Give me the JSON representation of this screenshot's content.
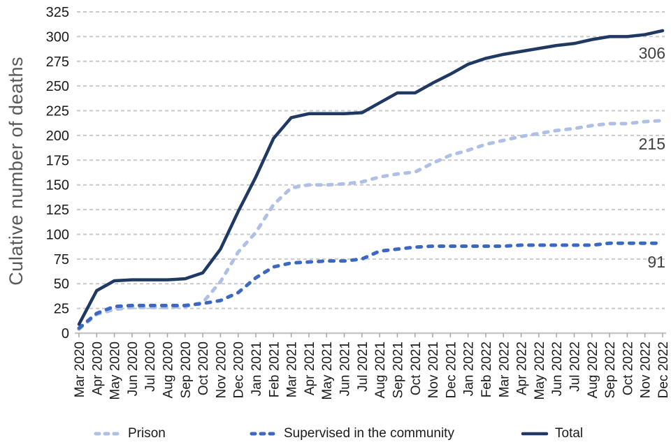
{
  "chart_data": {
    "type": "line",
    "title": "",
    "ylabel": "Culative number of deaths",
    "xlabel": "",
    "ylim": [
      0,
      325
    ],
    "y_ticks": [
      0,
      25,
      50,
      75,
      100,
      125,
      150,
      175,
      200,
      225,
      250,
      275,
      300,
      325
    ],
    "grid": "horizontal-dashed",
    "legend_position": "bottom",
    "categories": [
      "Mar 2020",
      "Apr 2020",
      "May 2020",
      "Jun 2020",
      "Jul 2020",
      "Aug 2020",
      "Sep 2020",
      "Oct 2020",
      "Nov 2020",
      "Dec 2020",
      "Jan 2021",
      "Feb 2021",
      "Mar 2021",
      "Apr 2021",
      "May 2021",
      "Jun 2021",
      "Jul 2021",
      "Aug 2021",
      "Sep 2021",
      "Oct 2021",
      "Nov 2021",
      "Dec 2021",
      "Jan 2022",
      "Feb 2022",
      "Mar 2022",
      "Apr 2022",
      "May 2022",
      "Jun 2022",
      "Jul 2022",
      "Aug 2022",
      "Sep 2022",
      "Oct 2022",
      "Nov 2022",
      "Dec 2022"
    ],
    "series": [
      {
        "name": "Prison",
        "style": "dashed",
        "color": "#AEC0E6",
        "values": [
          4,
          19,
          24,
          26,
          26,
          26,
          27,
          31,
          52,
          82,
          102,
          130,
          147,
          150,
          150,
          151,
          153,
          158,
          161,
          163,
          172,
          180,
          185,
          191,
          195,
          199,
          202,
          205,
          207,
          210,
          212,
          212,
          214,
          215
        ]
      },
      {
        "name": "Supervised in the community",
        "style": "dashed",
        "color": "#3C68C4",
        "values": [
          5,
          20,
          27,
          28,
          28,
          28,
          28,
          30,
          33,
          41,
          56,
          67,
          71,
          72,
          73,
          73,
          75,
          83,
          85,
          87,
          88,
          88,
          88,
          88,
          88,
          89,
          89,
          89,
          89,
          89,
          91,
          91,
          91,
          91
        ]
      },
      {
        "name": "Total",
        "style": "solid",
        "color": "#1F3864",
        "values": [
          9,
          43,
          53,
          54,
          54,
          54,
          55,
          61,
          85,
          123,
          158,
          197,
          218,
          222,
          222,
          222,
          223,
          233,
          243,
          243,
          253,
          262,
          272,
          278,
          282,
          285,
          288,
          291,
          293,
          297,
          300,
          300,
          302,
          306
        ]
      }
    ],
    "end_labels": [
      {
        "series": "Total",
        "text": "306"
      },
      {
        "series": "Prison",
        "text": "215"
      },
      {
        "series": "Supervised in the community",
        "text": "91"
      }
    ]
  }
}
